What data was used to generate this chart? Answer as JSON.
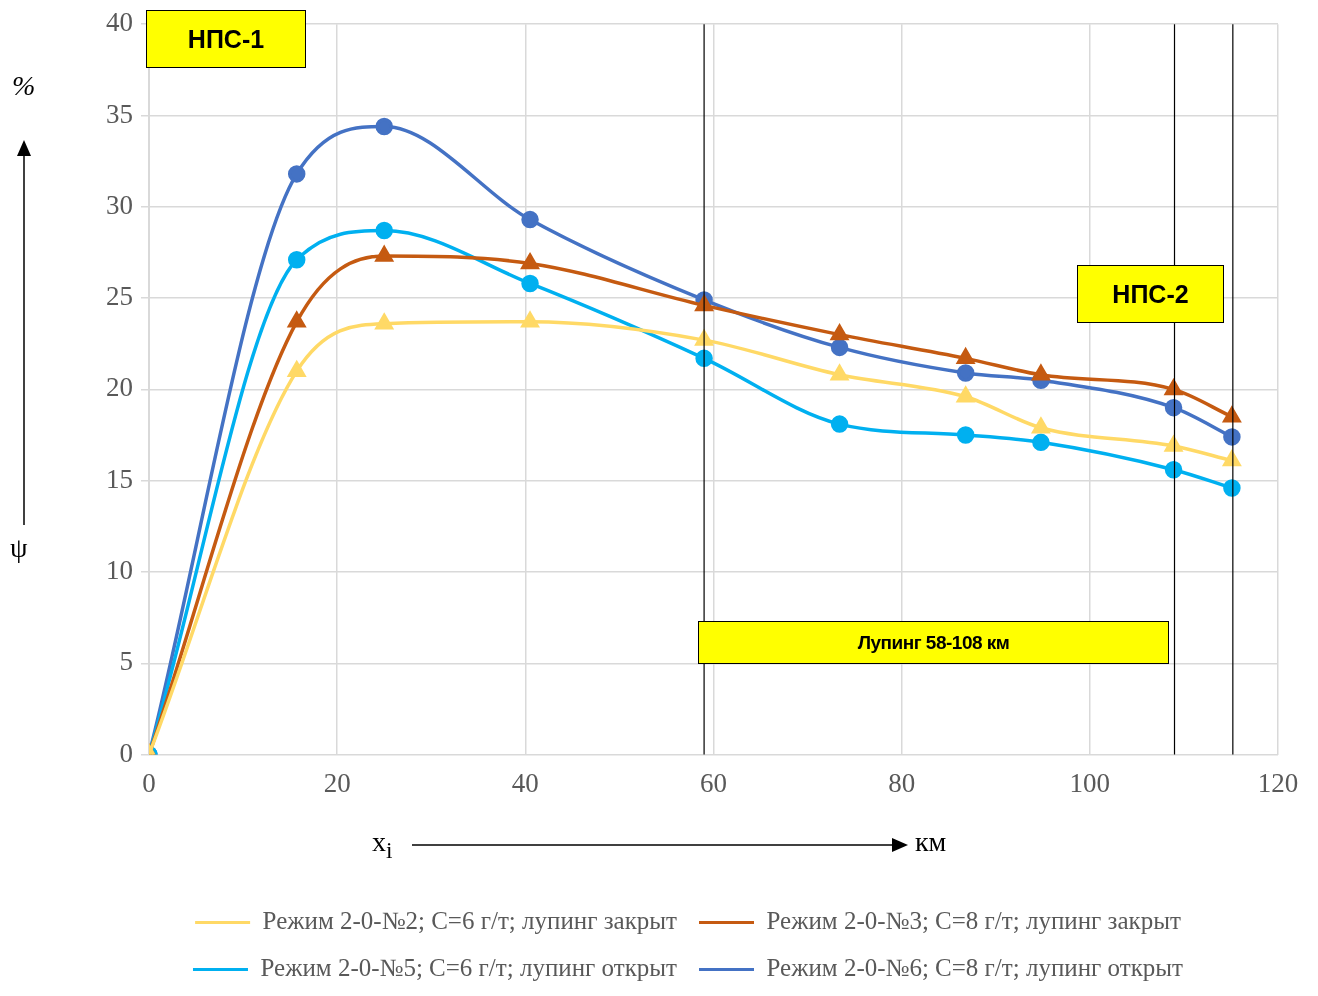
{
  "chart_data": {
    "type": "line",
    "xlabel": "x$_{i}$",
    "ylabel": "ψ",
    "x": [
      0,
      15.7,
      25,
      40.5,
      59,
      73.4,
      86.8,
      94.8,
      108.9,
      115.1
    ],
    "series": [
      {
        "name": "Режим 2-0-№2; С=6 г/т; лупинг закрыт",
        "color": "#ffd966",
        "marker": "triangle",
        "values": [
          0,
          21.0,
          23.6,
          23.7,
          22.7,
          20.8,
          19.6,
          17.9,
          16.9,
          16.1
        ]
      },
      {
        "name": "Режим 2-0-№3; С=8 г/т; лупинг закрыт",
        "color": "#c55a11",
        "marker": "triangle",
        "values": [
          0,
          23.7,
          27.3,
          26.9,
          24.6,
          23.0,
          21.7,
          20.8,
          20.0,
          18.5
        ]
      },
      {
        "name": "Режим 2-0-№5; С=6 г/т; лупинг открыт",
        "color": "#00b0f0",
        "marker": "circle",
        "values": [
          0,
          27.1,
          28.7,
          25.8,
          21.7,
          18.1,
          17.5,
          17.1,
          15.6,
          14.6
        ]
      },
      {
        "name": "Режим 2-0-№6; С=8 г/т; лупинг открыт",
        "color": "#4472c4",
        "marker": "circle",
        "values": [
          0,
          31.8,
          34.4,
          29.3,
          24.9,
          22.3,
          20.9,
          20.5,
          19.0,
          17.4
        ]
      }
    ],
    "xlim": [
      0,
      120
    ],
    "xticks": [
      0,
      20,
      40,
      60,
      80,
      100,
      120
    ],
    "ylim": [
      0,
      40
    ],
    "yticks": [
      0,
      5,
      10,
      15,
      20,
      25,
      30,
      35,
      40
    ],
    "grid": true,
    "legend": "bottom",
    "ref_lines": [
      {
        "axis": "x",
        "value": 59,
        "color": "#000000"
      },
      {
        "axis": "x",
        "value": 109,
        "color": "#000000"
      },
      {
        "axis": "x",
        "value": 115.2,
        "color": "#000000"
      }
    ],
    "annotations": [
      "НПС-1",
      "НПС-2",
      "Лупинг 58-108 км",
      "%",
      "км"
    ]
  }
}
